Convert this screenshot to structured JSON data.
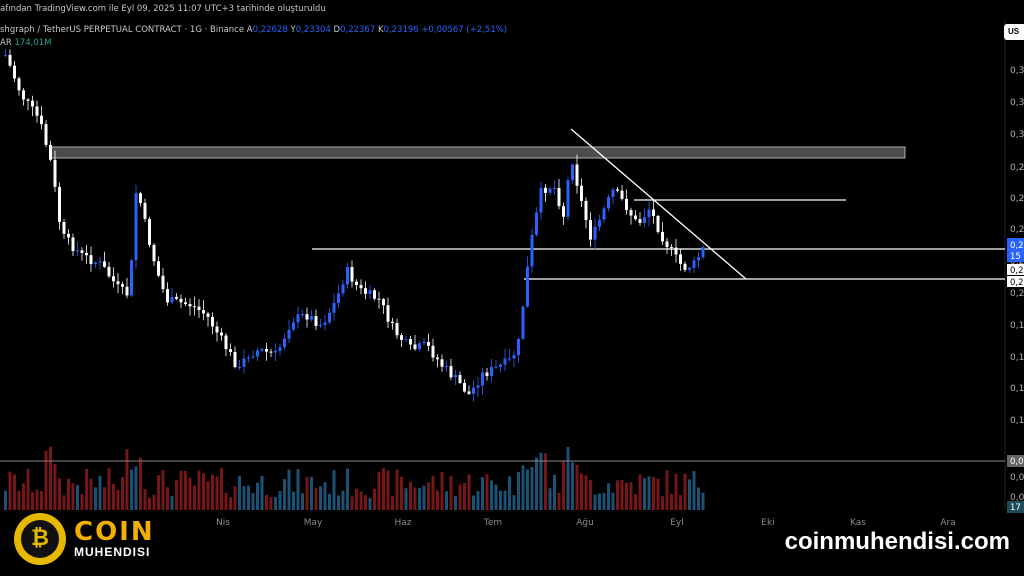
{
  "header": {
    "line1": "afından TradingView.com ile Eyl 09, 2025 11:07 UTC+3 tarihinde oluşturuldu",
    "symbol": "shgraph / TetherUS PERPETUAL CONTRACT · 1G · Binance",
    "o_label": "A",
    "o_value": "0,22628",
    "h_label": "Y",
    "h_value": "0,23304",
    "l_label": "D",
    "l_value": "0,22367",
    "c_label": "K",
    "c_value": "0,23196",
    "change": "+0,00567 (+2,51%)",
    "vol_label": "AR",
    "vol_value": "174,01M"
  },
  "axis": {
    "currency_badge": "US",
    "right_labels": [
      "0,3",
      "0,3",
      "0,3",
      "0,2",
      "0,2",
      "0,2",
      "0,2",
      "0,2",
      "0,1",
      "0,1",
      "0,1",
      "0,1",
      "0,0",
      "0,0"
    ],
    "price_badge": "0,2",
    "price_badge_sub": "15",
    "level_badge_1": "0,2",
    "level_badge_2": "0,2",
    "zero_badge": "0,0",
    "vol_badge": "17"
  },
  "chart_data": {
    "type": "candlestick",
    "x_ticks": [
      "Nis",
      "May",
      "Haz",
      "Tem",
      "Ağu",
      "Eyl",
      "Eki",
      "Kas",
      "Ara"
    ],
    "last_price_color": "#2962ff",
    "up_color": "#2962ff",
    "down_color": "#ffffff",
    "volume_up_color": "#1e5f8a",
    "volume_down_color": "#8b1a1a",
    "grid": false,
    "annotations": [
      "resistance-zone",
      "horizontal-level",
      "horizontal-level",
      "horizontal-level",
      "descending-trendline"
    ]
  },
  "branding": {
    "logo_top": "COIN",
    "logo_bottom": "MUHENDISI",
    "logo_glyph": "₿",
    "website": "coinmuhendisi.com"
  }
}
